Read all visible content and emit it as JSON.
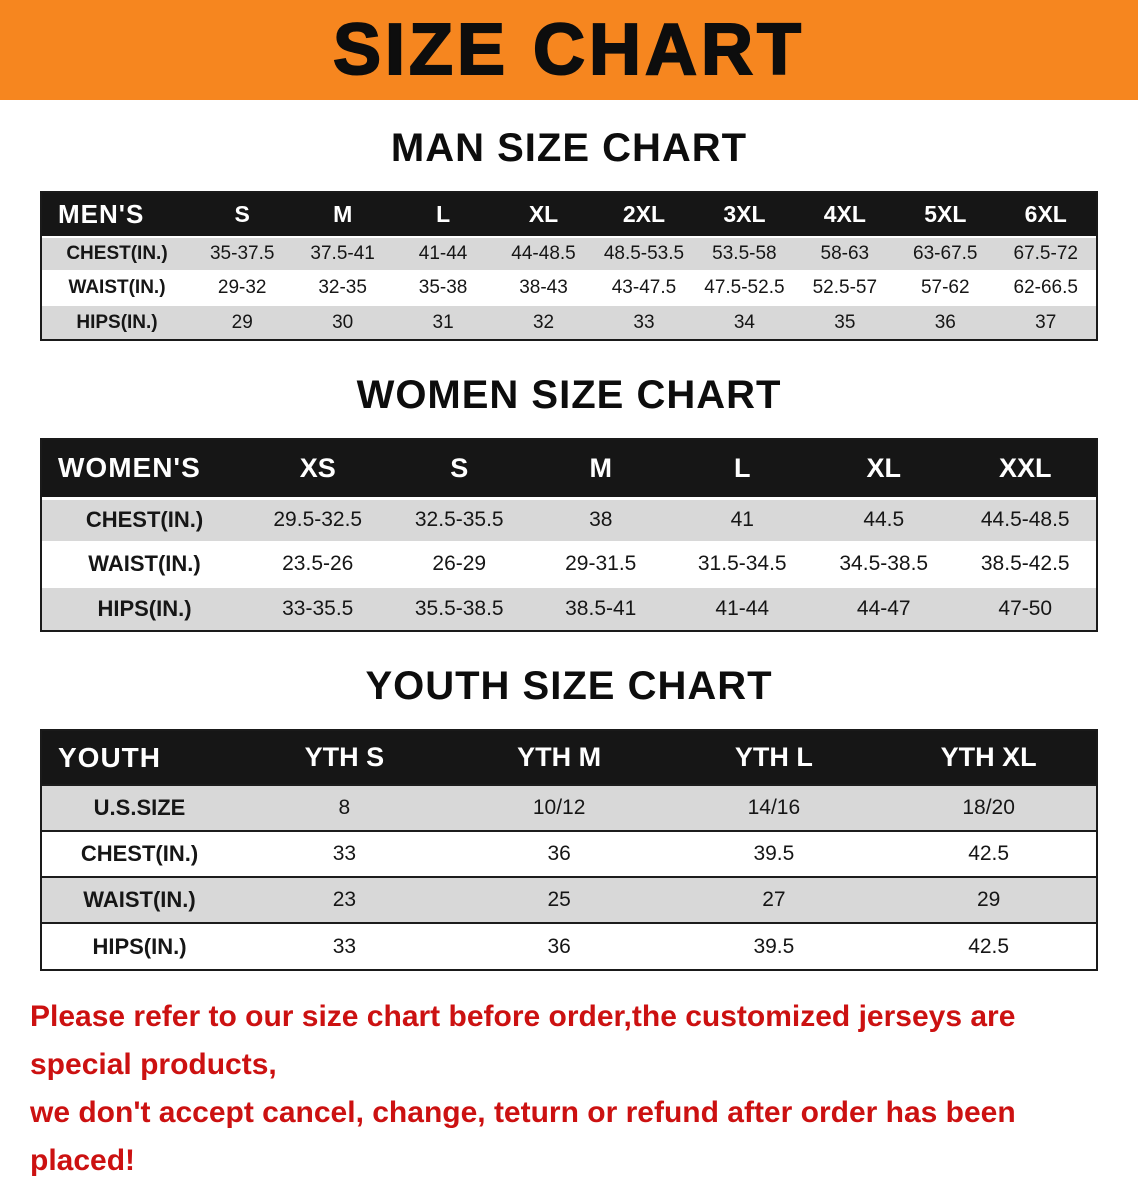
{
  "banner": {
    "title": "SIZE CHART"
  },
  "tables": [
    {
      "id": "men",
      "heading": "MAN SIZE CHART",
      "header": [
        "MEN'S",
        "S",
        "M",
        "L",
        "XL",
        "2XL",
        "3XL",
        "4XL",
        "5XL",
        "6XL"
      ],
      "rows": [
        [
          "CHEST(IN.)",
          "35-37.5",
          "37.5-41",
          "41-44",
          "44-48.5",
          "48.5-53.5",
          "53.5-58",
          "58-63",
          "63-67.5",
          "67.5-72"
        ],
        [
          "WAIST(IN.)",
          "29-32",
          "32-35",
          "35-38",
          "38-43",
          "43-47.5",
          "47.5-52.5",
          "52.5-57",
          "57-62",
          "62-66.5"
        ],
        [
          "HIPS(IN.)",
          "29",
          "30",
          "31",
          "32",
          "33",
          "34",
          "35",
          "36",
          "37"
        ]
      ]
    },
    {
      "id": "women",
      "heading": "WOMEN SIZE CHART",
      "header": [
        "WOMEN'S",
        "XS",
        "S",
        "M",
        "L",
        "XL",
        "XXL"
      ],
      "rows": [
        [
          "CHEST(IN.)",
          "29.5-32.5",
          "32.5-35.5",
          "38",
          "41",
          "44.5",
          "44.5-48.5"
        ],
        [
          "WAIST(IN.)",
          "23.5-26",
          "26-29",
          "29-31.5",
          "31.5-34.5",
          "34.5-38.5",
          "38.5-42.5"
        ],
        [
          "HIPS(IN.)",
          "33-35.5",
          "35.5-38.5",
          "38.5-41",
          "41-44",
          "44-47",
          "47-50"
        ]
      ]
    },
    {
      "id": "youth",
      "heading": "YOUTH SIZE CHART",
      "header": [
        "YOUTH",
        "YTH S",
        "YTH M",
        "YTH L",
        "YTH XL"
      ],
      "rows": [
        [
          "U.S.SIZE",
          "8",
          "10/12",
          "14/16",
          "18/20"
        ],
        [
          "CHEST(IN.)",
          "33",
          "36",
          "39.5",
          "42.5"
        ],
        [
          "WAIST(IN.)",
          "23",
          "25",
          "27",
          "29"
        ],
        [
          "HIPS(IN.)",
          "33",
          "36",
          "39.5",
          "42.5"
        ]
      ]
    }
  ],
  "footer": {
    "lines": [
      "Please refer to our size chart before order,the customized jerseys are special products,",
      "we don't accept cancel, change, teturn or refund after order has been placed!"
    ]
  },
  "colors": {
    "banner_bg": "#f6861f",
    "header_bg": "#161616",
    "row_alt": "#d8d8d8",
    "footer_text": "#cc1111"
  }
}
